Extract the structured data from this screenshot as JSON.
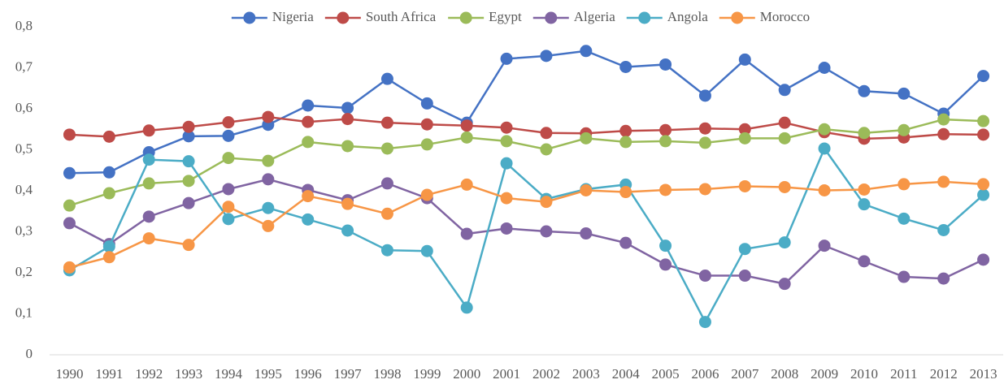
{
  "chart_data": {
    "type": "line",
    "categories": [
      "1990",
      "1991",
      "1992",
      "1993",
      "1994",
      "1995",
      "1996",
      "1997",
      "1998",
      "1999",
      "2000",
      "2001",
      "2002",
      "2003",
      "2004",
      "2005",
      "2006",
      "2007",
      "2008",
      "2009",
      "2010",
      "2011",
      "2012",
      "2013"
    ],
    "series": [
      {
        "name": "Nigeria",
        "color": "#4472c4",
        "values": [
          0.443,
          0.445,
          0.494,
          0.533,
          0.534,
          0.561,
          0.608,
          0.602,
          0.673,
          0.613,
          0.566,
          0.722,
          0.729,
          0.741,
          0.702,
          0.708,
          0.632,
          0.72,
          0.646,
          0.7,
          0.643,
          0.637,
          0.588,
          0.68
        ]
      },
      {
        "name": "South Africa",
        "color": "#be4b48",
        "values": [
          0.537,
          0.532,
          0.547,
          0.556,
          0.567,
          0.58,
          0.568,
          0.575,
          0.566,
          0.562,
          0.559,
          0.554,
          0.541,
          0.54,
          0.546,
          0.548,
          0.552,
          0.55,
          0.566,
          0.543,
          0.527,
          0.53,
          0.538,
          0.537
        ]
      },
      {
        "name": "Egypt",
        "color": "#9bbb59",
        "values": [
          0.364,
          0.394,
          0.418,
          0.424,
          0.48,
          0.473,
          0.519,
          0.509,
          0.503,
          0.513,
          0.53,
          0.521,
          0.501,
          0.528,
          0.519,
          0.521,
          0.517,
          0.528,
          0.528,
          0.55,
          0.541,
          0.548,
          0.574,
          0.57
        ]
      },
      {
        "name": "Algeria",
        "color": "#8064a2",
        "values": [
          0.321,
          0.27,
          0.337,
          0.37,
          0.404,
          0.428,
          0.402,
          0.377,
          0.418,
          0.382,
          0.295,
          0.308,
          0.301,
          0.296,
          0.273,
          0.22,
          0.193,
          0.193,
          0.173,
          0.266,
          0.228,
          0.19,
          0.186,
          0.232
        ]
      },
      {
        "name": "Angola",
        "color": "#4bacc6",
        "values": [
          0.206,
          0.264,
          0.476,
          0.472,
          0.331,
          0.358,
          0.33,
          0.303,
          0.255,
          0.253,
          0.115,
          0.467,
          0.38,
          0.404,
          0.415,
          0.266,
          0.08,
          0.258,
          0.274,
          0.503,
          0.367,
          0.332,
          0.304,
          0.39
        ]
      },
      {
        "name": "Morocco",
        "color": "#f79646",
        "values": [
          0.213,
          0.238,
          0.284,
          0.268,
          0.361,
          0.314,
          0.387,
          0.368,
          0.344,
          0.39,
          0.415,
          0.382,
          0.373,
          0.401,
          0.397,
          0.402,
          0.404,
          0.411,
          0.409,
          0.401,
          0.403,
          0.416,
          0.422,
          0.416
        ]
      }
    ],
    "ylim": [
      0,
      0.8
    ],
    "yticks": [
      0,
      {
        "value": 0.1,
        "label": "0,1"
      },
      {
        "value": 0.2,
        "label": "0,2"
      },
      {
        "value": 0.3,
        "label": "0,3"
      },
      {
        "value": 0.4,
        "label": "0,4"
      },
      {
        "value": 0.5,
        "label": "0,5"
      },
      {
        "value": 0.6,
        "label": "0,6"
      },
      {
        "value": 0.7,
        "label": "0,7"
      },
      {
        "value": 0.8,
        "label": "0,8"
      }
    ],
    "grid": false,
    "legend": "top"
  }
}
